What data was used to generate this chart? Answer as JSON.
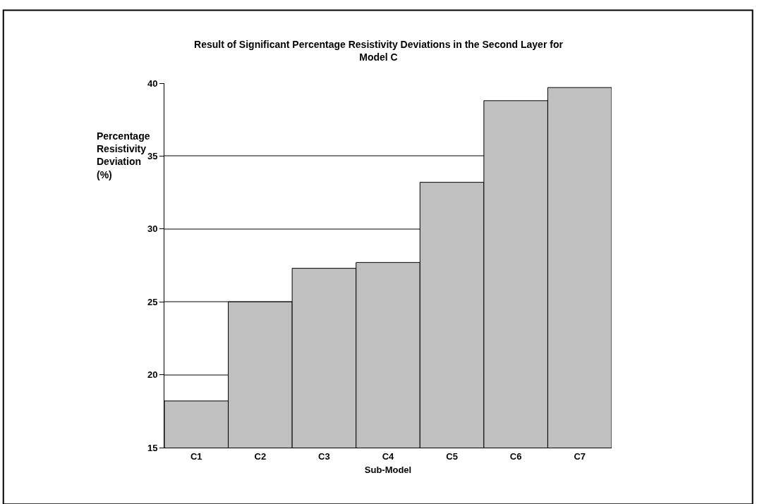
{
  "chart_data": {
    "type": "bar",
    "title": "Result of Significant Percentage Resistivity Deviations in the Second Layer for\nModel C",
    "xlabel": "Sub-Model",
    "ylabel": "Percentage\nResistivity\nDeviation\n(%)",
    "categories": [
      "C1",
      "C2",
      "C3",
      "C4",
      "C5",
      "C6",
      "C7"
    ],
    "values": [
      18.2,
      25.0,
      27.3,
      27.7,
      33.2,
      38.8,
      39.7
    ],
    "color": "#c0c0c0",
    "ylim": [
      15,
      40
    ],
    "yticks": [
      15,
      20,
      25,
      30,
      35,
      40
    ],
    "grid": "y",
    "legend": false
  }
}
